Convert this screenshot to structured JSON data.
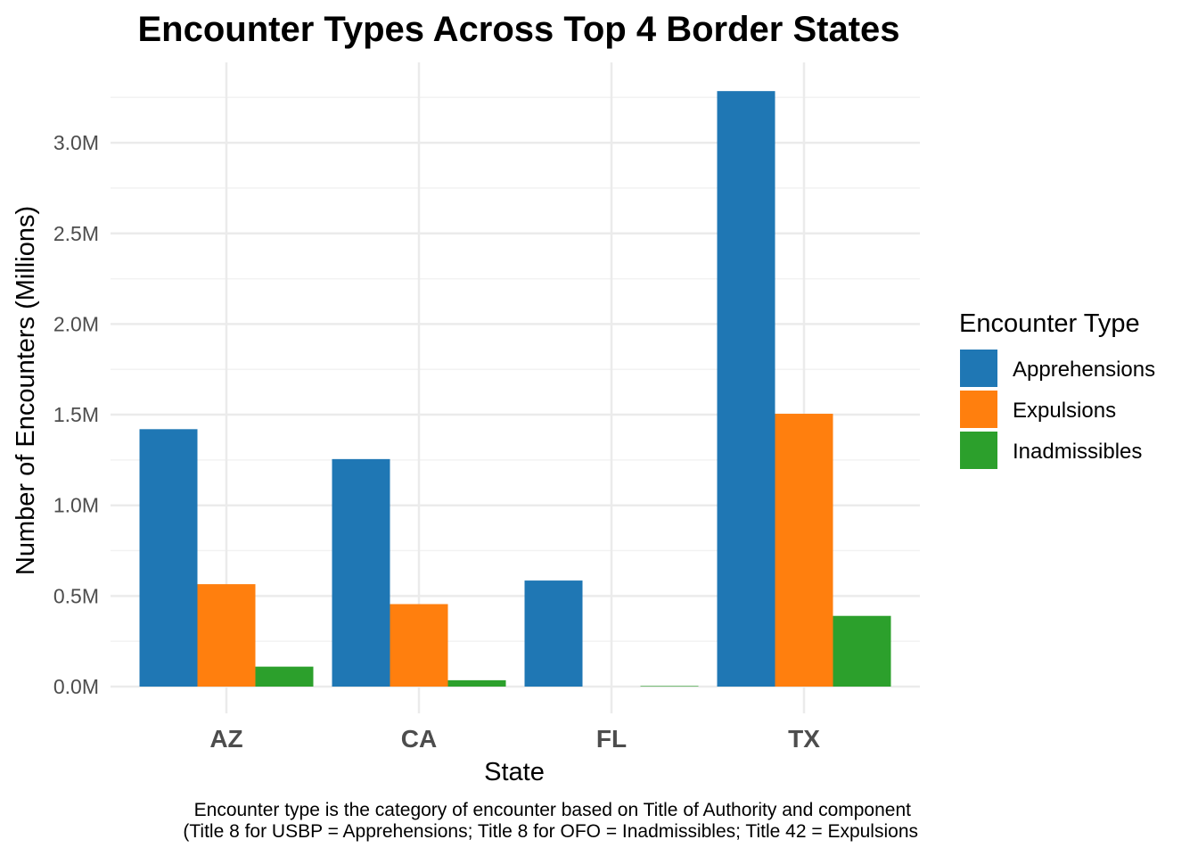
{
  "chart_data": {
    "type": "bar",
    "title": "Encounter Types Across Top 4 Border States",
    "xlabel": "State",
    "ylabel": "Number of Encounters (Millions)",
    "categories": [
      "AZ",
      "CA",
      "FL",
      "TX"
    ],
    "series": [
      {
        "name": "Apprehensions",
        "color": "#1f77b4",
        "values": [
          1.42,
          1.255,
          0.585,
          3.285
        ]
      },
      {
        "name": "Expulsions",
        "color": "#ff7f0e",
        "values": [
          0.565,
          0.455,
          0,
          1.505
        ]
      },
      {
        "name": "Inadmissibles",
        "color": "#2ca02c",
        "values": [
          0.11,
          0.035,
          0.003,
          0.39
        ]
      }
    ],
    "yticks": [
      0,
      0.5,
      1.0,
      1.5,
      2.0,
      2.5,
      3.0
    ],
    "ytick_labels": [
      "0.0M",
      "0.5M",
      "1.0M",
      "1.5M",
      "2.0M",
      "2.5M",
      "3.0M"
    ],
    "ylim": [
      -0.18,
      3.45
    ],
    "grid": true,
    "legend_title": "Encounter Type",
    "legend_position": "right",
    "caption": [
      "Encounter type is the category of encounter based on Title of Authority and component",
      "(Title 8 for USBP = Apprehensions; Title 8 for OFO = Inadmissibles; Title 42 = Expulsions"
    ]
  }
}
